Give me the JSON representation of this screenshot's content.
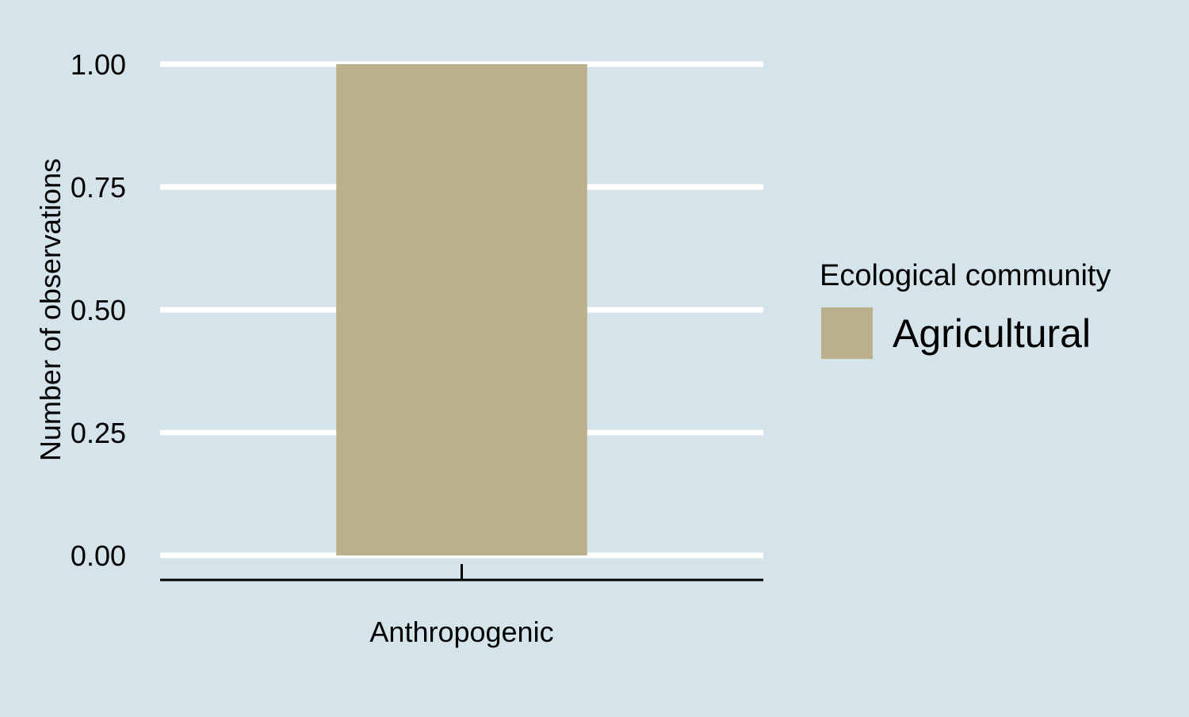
{
  "chart_data": {
    "type": "bar",
    "categories": [
      "Anthropogenic"
    ],
    "series": [
      {
        "name": "Agricultural",
        "values": [
          1.0
        ]
      }
    ],
    "xlabel": "",
    "ylabel": "Number of observations",
    "ylim": [
      0,
      1
    ],
    "yticks": [
      "0.00",
      "0.25",
      "0.50",
      "0.75",
      "1.00"
    ],
    "grid": "horizontal major",
    "legend": {
      "title": "Ecological community",
      "placement": "right",
      "entries": [
        "Agricultural"
      ]
    },
    "colors": {
      "background": "#d5e4eb",
      "grid": "#ffffff",
      "bar": "#bab08c",
      "axis": "#000000"
    }
  }
}
